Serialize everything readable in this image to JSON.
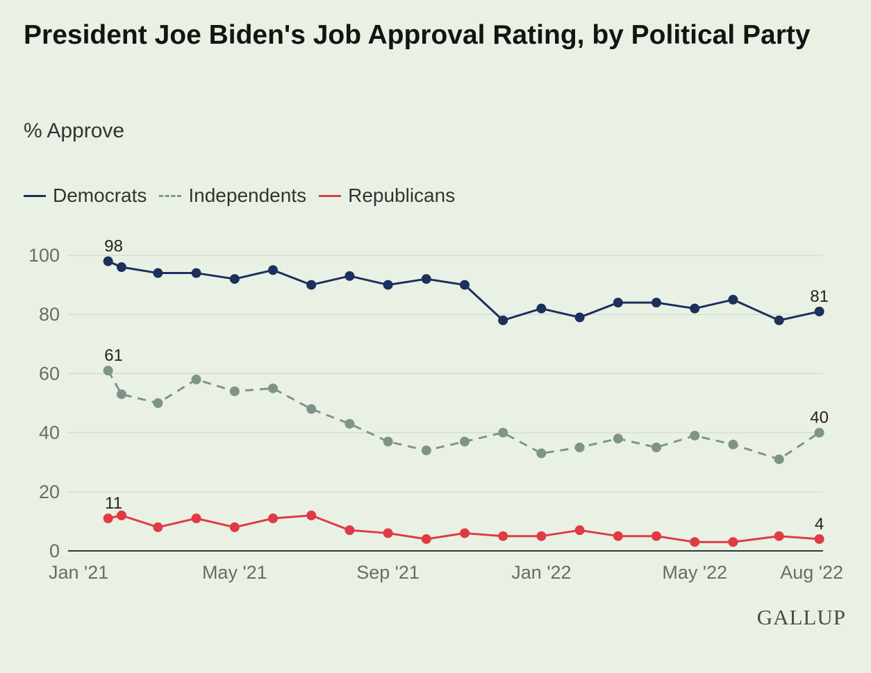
{
  "header": {
    "title": "President Joe Biden's Job Approval Rating, by Political Party",
    "subtitle": "% Approve"
  },
  "brand": {
    "name": "GALLUP"
  },
  "colors": {
    "democrats": "#1d2f5c",
    "independents": "#7e948b",
    "republicans": "#e03a45",
    "grid": "#d6ddd2",
    "background": "#e9f1e5"
  },
  "chart_data": {
    "type": "line",
    "title": "President Joe Biden's Job Approval Rating, by Political Party",
    "subtitle": "% Approve",
    "xlabel": "",
    "ylabel": "% Approve",
    "ylim": [
      0,
      100
    ],
    "yticks": [
      0,
      20,
      40,
      60,
      80,
      100
    ],
    "x_tick_labels": [
      {
        "label": "Jan '21",
        "month": 0
      },
      {
        "label": "May '21",
        "month": 4
      },
      {
        "label": "Sep '21",
        "month": 8
      },
      {
        "label": "Jan '22",
        "month": 12
      },
      {
        "label": "May '22",
        "month": 16
      },
      {
        "label": "Aug '22",
        "month": 19
      }
    ],
    "x_months": [
      0.7,
      1.05,
      2.0,
      3.0,
      4.0,
      5.0,
      6.0,
      7.0,
      8.0,
      9.0,
      10.0,
      11.0,
      12.0,
      13.0,
      14.0,
      15.0,
      16.0,
      17.0,
      18.2,
      19.25
    ],
    "legend_position": "top-left",
    "series": [
      {
        "name": "Democrats",
        "key": "democrats",
        "style": "solid",
        "values": [
          98,
          96,
          94,
          94,
          92,
          95,
          90,
          93,
          90,
          92,
          90,
          78,
          82,
          79,
          84,
          84,
          82,
          85,
          78,
          81
        ],
        "labels": [
          {
            "index": 0,
            "text": "98"
          },
          {
            "index": 19,
            "text": "81"
          }
        ]
      },
      {
        "name": "Independents",
        "key": "independents",
        "style": "dashed",
        "values": [
          61,
          53,
          50,
          58,
          54,
          55,
          48,
          43,
          37,
          34,
          37,
          40,
          33,
          35,
          38,
          35,
          39,
          36,
          31,
          40
        ],
        "labels": [
          {
            "index": 0,
            "text": "61"
          },
          {
            "index": 19,
            "text": "40"
          }
        ]
      },
      {
        "name": "Republicans",
        "key": "republicans",
        "style": "solid",
        "values": [
          11,
          12,
          8,
          11,
          8,
          11,
          12,
          7,
          6,
          4,
          6,
          5,
          5,
          7,
          5,
          5,
          3,
          3,
          5,
          4
        ],
        "labels": [
          {
            "index": 0,
            "text": "11"
          },
          {
            "index": 19,
            "text": "4"
          }
        ]
      }
    ]
  }
}
